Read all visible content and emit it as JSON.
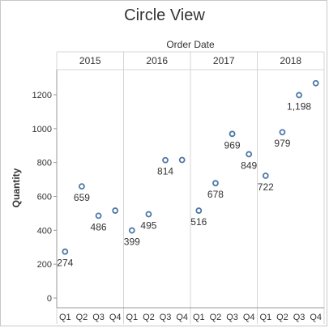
{
  "title": "Circle View",
  "chart_data": {
    "type": "scatter",
    "column_title": "Order Date",
    "years": [
      "2015",
      "2016",
      "2017",
      "2018"
    ],
    "quarters": [
      "Q1",
      "Q2",
      "Q3",
      "Q4"
    ],
    "ylabel": "Quantity",
    "ylim": [
      0,
      1300
    ],
    "yticks": [
      0,
      200,
      400,
      600,
      800,
      1000,
      1200
    ],
    "ytick_labels": [
      "0",
      "200",
      "400",
      "600",
      "800",
      "1000",
      "1200"
    ],
    "marker_color": "#4e79a7",
    "series": [
      {
        "values": [
          274,
          659,
          486,
          516,
          399,
          495,
          814,
          815,
          516,
          678,
          969,
          849,
          722,
          979,
          1198,
          1268
        ],
        "labels": [
          "274",
          "659",
          "486",
          "",
          "399",
          "495",
          "814",
          "",
          "516",
          "678",
          "969",
          "849",
          "722",
          "979",
          "1,198",
          ""
        ]
      }
    ]
  }
}
